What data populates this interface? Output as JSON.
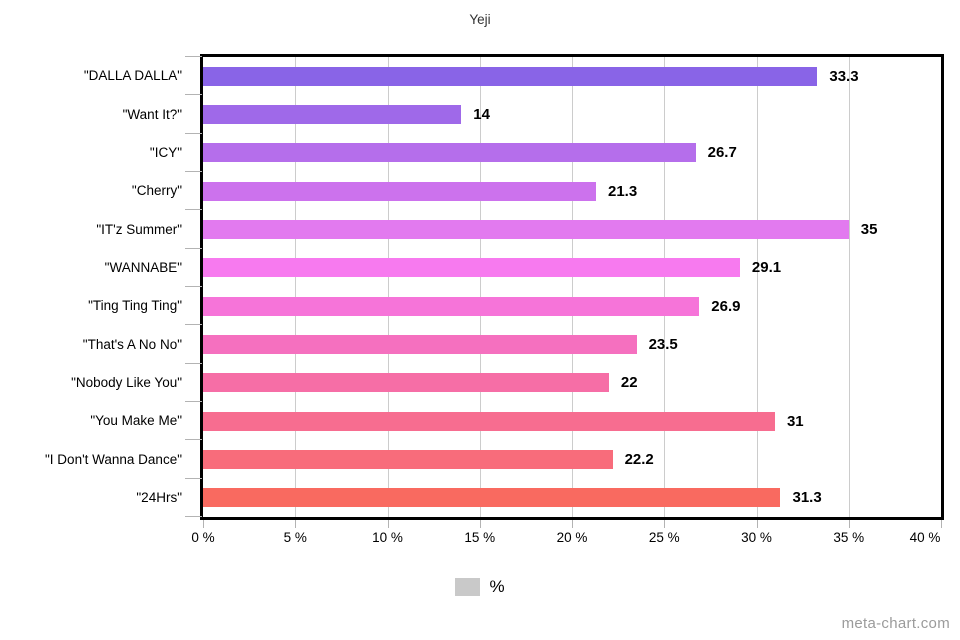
{
  "title": "Yeji",
  "watermark": "meta-chart.com",
  "legend": {
    "label": "%",
    "swatch_color": "#c9c9c9"
  },
  "chart_data": {
    "type": "bar",
    "orientation": "horizontal",
    "title": "Yeji",
    "categories": [
      "\"DALLA DALLA\"",
      "\"Want It?\"",
      "\"ICY\"",
      "\"Cherry\"",
      "\"IT'z Summer\"",
      "\"WANNABE\"",
      "\"Ting Ting Ting\"",
      "\"That's A No No\"",
      "\"Nobody Like You\"",
      "\"You Make Me\"",
      "\"I Don't Wanna Dance\"",
      "\"24Hrs\""
    ],
    "values": [
      33.3,
      14,
      26.7,
      21.3,
      35,
      29.1,
      26.9,
      23.5,
      22,
      31,
      22.2,
      31.3
    ],
    "value_labels": [
      "33.3",
      "14",
      "26.7",
      "21.3",
      "35",
      "29.1",
      "26.9",
      "23.5",
      "22",
      "31",
      "22.2",
      "31.3"
    ],
    "bar_colors": [
      "#8964e7",
      "#9f69e9",
      "#b56eeb",
      "#cc72ed",
      "#e27aef",
      "#f77aef",
      "#f674d9",
      "#f570bf",
      "#f66ea6",
      "#f76d90",
      "#f86c7b",
      "#f96a60"
    ],
    "xlabel": "",
    "ylabel": "",
    "xlim": [
      0,
      40
    ],
    "x_tick_values": [
      0,
      5,
      10,
      15,
      20,
      25,
      30,
      35,
      40
    ],
    "x_tick_labels": [
      "0 %",
      "5 %",
      "10 %",
      "15 %",
      "20 %",
      "25 %",
      "30 %",
      "35 %",
      "40 %"
    ],
    "grid": true,
    "gridline_color": "#cccccc",
    "axis_border_color": "#000000",
    "legend": [
      "%"
    ],
    "legend_position": "bottom"
  }
}
